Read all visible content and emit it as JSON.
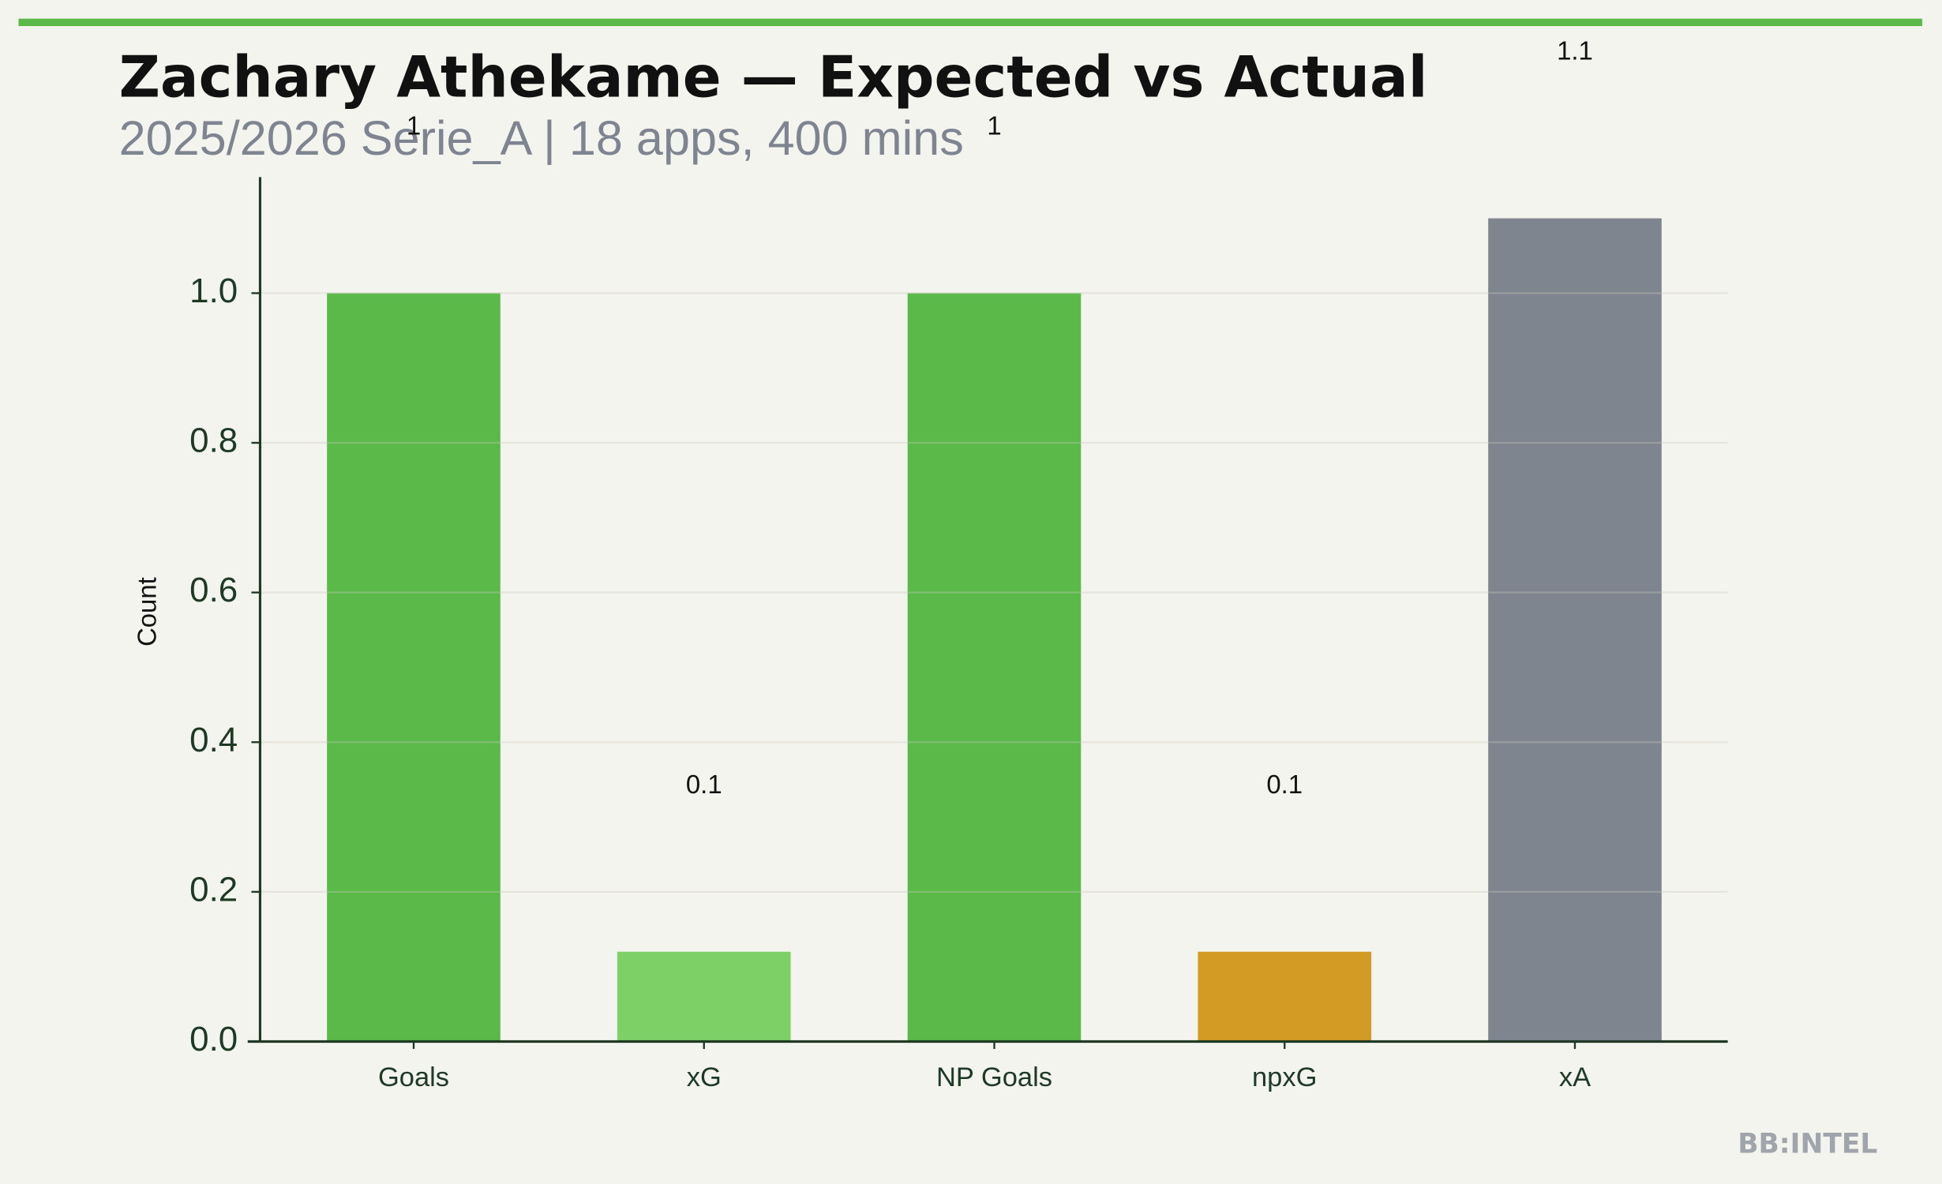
{
  "chart_data": {
    "type": "bar",
    "title": "Zachary Athekame — Expected vs Actual",
    "subtitle": "2025/2026 Serie_A | 18 apps, 400 mins",
    "y_label": "Count",
    "categories": [
      "Goals",
      "xG",
      "NP Goals",
      "npxG",
      "xA"
    ],
    "values": [
      1,
      0.12,
      1,
      0.12,
      1.1
    ],
    "value_labels": [
      "1",
      "0.1",
      "1",
      "0.1",
      "1.1"
    ],
    "colors": [
      "#5ab949",
      "#7dd066",
      "#5ab949",
      "#d49b24",
      "#7f858f"
    ],
    "ylim": [
      0,
      1.155
    ],
    "yticks": [
      {
        "value": 0,
        "label": "0.0"
      },
      0.2,
      0.4,
      0.6,
      0.8,
      {
        "value": 1,
        "label": "1.0"
      }
    ],
    "grid": true,
    "watermark": "BB:INTEL"
  }
}
